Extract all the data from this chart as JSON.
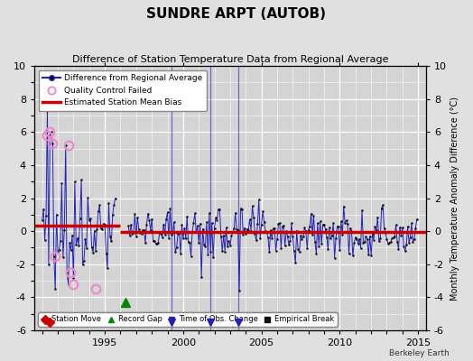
{
  "title": "SUNDRE ARPT (AUTOB)",
  "subtitle": "Difference of Station Temperature Data from Regional Average",
  "ylabel_right": "Monthly Temperature Anomaly Difference (°C)",
  "ylim": [
    -6,
    10
  ],
  "xlim": [
    1990.5,
    2015.5
  ],
  "yticks": [
    -6,
    -4,
    -2,
    0,
    2,
    4,
    6,
    8,
    10
  ],
  "xticks": [
    1995,
    2000,
    2005,
    2010,
    2015
  ],
  "background_color": "#e0e0e0",
  "plot_bg_color": "#d4d4d4",
  "grid_color": "#ffffff",
  "main_line_color": "#2222bb",
  "main_marker_color": "#111111",
  "bias_line_color": "#cc0000",
  "qc_marker_color": "#ee88cc",
  "station_move_color": "#cc0000",
  "record_gap_color": "#008800",
  "obs_change_color": "#2222bb",
  "empirical_break_color": "#111111",
  "bias_value_early": 0.35,
  "bias_value_late": -0.05,
  "bias_break_year": 1996.0,
  "record_gap_x": 1996.3,
  "record_gap_y": -4.3,
  "watermark": "Berkeley Earth"
}
